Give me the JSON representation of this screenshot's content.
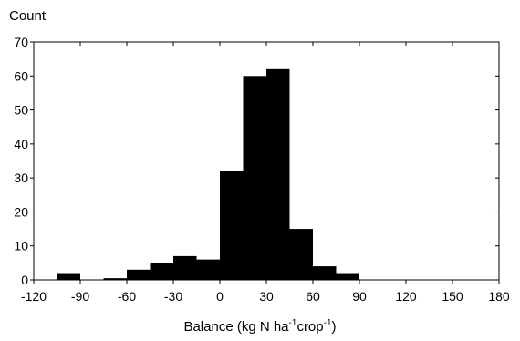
{
  "chart_data": {
    "type": "bar",
    "title": "",
    "ylabel": "Count",
    "xlabel": {
      "prefix": "Balance (kg N ha",
      "sup1": "-1",
      "middle": "crop",
      "sup2": "-1",
      "suffix": ")"
    },
    "xlim": [
      -120,
      180
    ],
    "ylim": [
      0,
      70
    ],
    "xticks": [
      -120,
      -90,
      -60,
      -30,
      0,
      30,
      60,
      90,
      120,
      150,
      180
    ],
    "yticks": [
      0,
      10,
      20,
      30,
      40,
      50,
      60,
      70
    ],
    "bar_color": "#000000",
    "bins": [
      {
        "x0": -105,
        "x1": -90,
        "count": 2
      },
      {
        "x0": -75,
        "x1": -60,
        "count": 0.5
      },
      {
        "x0": -60,
        "x1": -45,
        "count": 3
      },
      {
        "x0": -45,
        "x1": -30,
        "count": 5
      },
      {
        "x0": -30,
        "x1": -15,
        "count": 7
      },
      {
        "x0": -15,
        "x1": 0,
        "count": 6
      },
      {
        "x0": 0,
        "x1": 15,
        "count": 32
      },
      {
        "x0": 15,
        "x1": 30,
        "count": 60
      },
      {
        "x0": 30,
        "x1": 45,
        "count": 62
      },
      {
        "x0": 45,
        "x1": 60,
        "count": 15
      },
      {
        "x0": 60,
        "x1": 75,
        "count": 4
      },
      {
        "x0": 75,
        "x1": 90,
        "count": 2
      }
    ]
  }
}
